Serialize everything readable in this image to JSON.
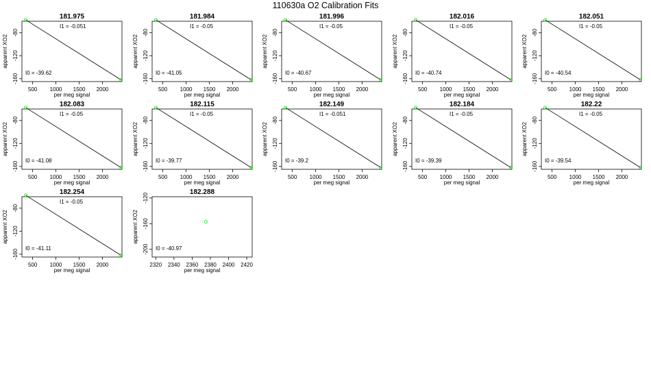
{
  "figure_title": "110630a   O2 Calibration Fits",
  "chart_data": [
    {
      "type": "line",
      "title": "181.975",
      "xlabel": "per meg signal",
      "ylabel": "apparent XO2",
      "xlim": [
        270,
        2420
      ],
      "ylim": [
        -165,
        -60
      ],
      "xticks": [
        "500",
        "1000",
        "1500",
        "2000"
      ],
      "yticks": [
        "-80",
        "-120",
        "-160"
      ],
      "i1_label": "I1 =  -0.051",
      "i0_label": "I0 =  -39.62",
      "line": {
        "x": [
          350,
          2400
        ],
        "y": [
          -57.5,
          -162.0
        ]
      },
      "points": [
        {
          "x": 350,
          "y": -57.5
        },
        {
          "x": 2400,
          "y": -162.0
        }
      ]
    },
    {
      "type": "line",
      "title": "181.984",
      "xlabel": "per meg signal",
      "ylabel": "apparent XO2",
      "xlim": [
        270,
        2420
      ],
      "ylim": [
        -165,
        -60
      ],
      "xticks": [
        "500",
        "1000",
        "1500",
        "2000"
      ],
      "yticks": [
        "-80",
        "-120",
        "-160"
      ],
      "i1_label": "I1 =  -0.05",
      "i0_label": "I0 =  -41.05",
      "line": {
        "x": [
          350,
          2400
        ],
        "y": [
          -57.5,
          -162.0
        ]
      },
      "points": [
        {
          "x": 350,
          "y": -57.5
        },
        {
          "x": 2400,
          "y": -162.0
        }
      ]
    },
    {
      "type": "line",
      "title": "181.996",
      "xlabel": "per meg signal",
      "ylabel": "apparent XO2",
      "xlim": [
        270,
        2420
      ],
      "ylim": [
        -165,
        -60
      ],
      "xticks": [
        "500",
        "1000",
        "1500",
        "2000"
      ],
      "yticks": [
        "-80",
        "-120",
        "-160"
      ],
      "i1_label": "I1 =  -0.05",
      "i0_label": "I0 =  -40.67",
      "line": {
        "x": [
          350,
          2400
        ],
        "y": [
          -57.5,
          -162.0
        ]
      },
      "points": [
        {
          "x": 350,
          "y": -57.5
        },
        {
          "x": 2400,
          "y": -162.0
        }
      ]
    },
    {
      "type": "line",
      "title": "182.016",
      "xlabel": "per meg signal",
      "ylabel": "apparent XO2",
      "xlim": [
        270,
        2420
      ],
      "ylim": [
        -165,
        -60
      ],
      "xticks": [
        "500",
        "1000",
        "1500",
        "2000"
      ],
      "yticks": [
        "-80",
        "-120",
        "-160"
      ],
      "i1_label": "I1 =  -0.05",
      "i0_label": "I0 =  -40.74",
      "line": {
        "x": [
          350,
          2400
        ],
        "y": [
          -57.5,
          -162.0
        ]
      },
      "points": [
        {
          "x": 350,
          "y": -57.5
        },
        {
          "x": 2400,
          "y": -162.0
        }
      ]
    },
    {
      "type": "line",
      "title": "182.051",
      "xlabel": "per meg signal",
      "ylabel": "apparent XO2",
      "xlim": [
        270,
        2420
      ],
      "ylim": [
        -165,
        -60
      ],
      "xticks": [
        "500",
        "1000",
        "1500",
        "2000"
      ],
      "yticks": [
        "-80",
        "-120",
        "-160"
      ],
      "i1_label": "I1 =  -0.05",
      "i0_label": "I0 =  -40.54",
      "line": {
        "x": [
          350,
          2400
        ],
        "y": [
          -57.5,
          -162.0
        ]
      },
      "points": [
        {
          "x": 350,
          "y": -57.5
        },
        {
          "x": 2400,
          "y": -162.0
        }
      ]
    },
    {
      "type": "line",
      "title": "182.083",
      "xlabel": "per meg signal",
      "ylabel": "apparent XO2",
      "xlim": [
        270,
        2420
      ],
      "ylim": [
        -165,
        -60
      ],
      "xticks": [
        "500",
        "1000",
        "1500",
        "2000"
      ],
      "yticks": [
        "-80",
        "-120",
        "-160"
      ],
      "i1_label": "I1 =  -0.05",
      "i0_label": "I0 =  -41.08",
      "line": {
        "x": [
          350,
          2400
        ],
        "y": [
          -57.5,
          -162.0
        ]
      },
      "points": [
        {
          "x": 350,
          "y": -57.5
        },
        {
          "x": 2400,
          "y": -162.0
        }
      ]
    },
    {
      "type": "line",
      "title": "182.115",
      "xlabel": "per meg signal",
      "ylabel": "apparent XO2",
      "xlim": [
        270,
        2420
      ],
      "ylim": [
        -165,
        -60
      ],
      "xticks": [
        "500",
        "1000",
        "1500",
        "2000"
      ],
      "yticks": [
        "-80",
        "-120",
        "-160"
      ],
      "i1_label": "I1 =  -0.05",
      "i0_label": "I0 =  -39.77",
      "line": {
        "x": [
          350,
          2400
        ],
        "y": [
          -57.5,
          -162.0
        ]
      },
      "points": [
        {
          "x": 350,
          "y": -57.5
        },
        {
          "x": 2400,
          "y": -162.0
        }
      ]
    },
    {
      "type": "line",
      "title": "182.149",
      "xlabel": "per meg signal",
      "ylabel": "apparent XO2",
      "xlim": [
        270,
        2420
      ],
      "ylim": [
        -165,
        -60
      ],
      "xticks": [
        "500",
        "1000",
        "1500",
        "2000"
      ],
      "yticks": [
        "-80",
        "-120",
        "-160"
      ],
      "i1_label": "I1 =  -0.051",
      "i0_label": "I0 =  -39.2",
      "line": {
        "x": [
          350,
          2400
        ],
        "y": [
          -57.5,
          -162.0
        ]
      },
      "points": [
        {
          "x": 350,
          "y": -57.5
        },
        {
          "x": 2400,
          "y": -162.0
        }
      ]
    },
    {
      "type": "line",
      "title": "182.184",
      "xlabel": "per meg signal",
      "ylabel": "apparent XO2",
      "xlim": [
        270,
        2420
      ],
      "ylim": [
        -165,
        -60
      ],
      "xticks": [
        "500",
        "1000",
        "1500",
        "2000"
      ],
      "yticks": [
        "-80",
        "-120",
        "-160"
      ],
      "i1_label": "I1 =  -0.05",
      "i0_label": "I0 =  -39.39",
      "line": {
        "x": [
          350,
          2400
        ],
        "y": [
          -57.5,
          -162.0
        ]
      },
      "points": [
        {
          "x": 350,
          "y": -57.5
        },
        {
          "x": 2400,
          "y": -162.0
        }
      ]
    },
    {
      "type": "line",
      "title": "182.22",
      "xlabel": "per meg signal",
      "ylabel": "apparent XO2",
      "xlim": [
        270,
        2420
      ],
      "ylim": [
        -165,
        -60
      ],
      "xticks": [
        "500",
        "1000",
        "1500",
        "2000"
      ],
      "yticks": [
        "-80",
        "-120",
        "-160"
      ],
      "i1_label": "I1 =  -0.05",
      "i0_label": "I0 =  -39.54",
      "line": {
        "x": [
          350,
          2400
        ],
        "y": [
          -57.5,
          -162.0
        ]
      },
      "points": [
        {
          "x": 350,
          "y": -57.5
        },
        {
          "x": 2400,
          "y": -162.0
        }
      ]
    },
    {
      "type": "line",
      "title": "182.254",
      "xlabel": "per meg signal",
      "ylabel": "apparent XO2",
      "xlim": [
        270,
        2420
      ],
      "ylim": [
        -165,
        -60
      ],
      "xticks": [
        "500",
        "1000",
        "1500",
        "2000"
      ],
      "yticks": [
        "-80",
        "-120",
        "-160"
      ],
      "i1_label": "I1 =  -0.05",
      "i0_label": "I0 =  -41.11",
      "line": {
        "x": [
          350,
          2400
        ],
        "y": [
          -57.5,
          -162.0
        ]
      },
      "points": [
        {
          "x": 350,
          "y": -57.5
        },
        {
          "x": 2400,
          "y": -162.0
        }
      ]
    },
    {
      "type": "scatter",
      "title": "182.288",
      "xlabel": "per meg signal",
      "ylabel": "apparent XO2",
      "xlim": [
        2316,
        2426
      ],
      "ylim": [
        -212,
        -118
      ],
      "xticks": [
        "2320",
        "2340",
        "2360",
        "2380",
        "2400",
        "2420"
      ],
      "yticks": [
        "-120",
        "-160",
        "-200"
      ],
      "i1_label": "",
      "i0_label": "I0 =  -40.97",
      "line": null,
      "points": [
        {
          "x": 2375,
          "y": -157
        }
      ]
    }
  ],
  "colors": {
    "axis": "#000000",
    "line": "#000000",
    "point": "#00dd00"
  }
}
